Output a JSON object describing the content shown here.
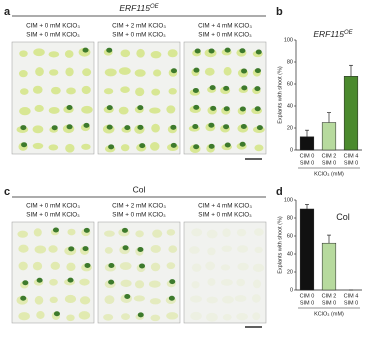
{
  "panels": {
    "a": {
      "label": "a",
      "title": "ERF115",
      "title_sup": "OE",
      "images": [
        [
          "CIM + 0 mM KClO₃",
          "SIM + 0 mM KClO₃"
        ],
        [
          "CIM + 2 mM KClO₃",
          "SIM + 0 mM KClO₃"
        ],
        [
          "CIM + 4 mM KClO₃",
          "SIM + 0 mM KClO₃"
        ]
      ]
    },
    "c": {
      "label": "c",
      "title": "Col",
      "images": [
        [
          "CIM + 0 mM KClO₃",
          "SIM + 0 mM KClO₃"
        ],
        [
          "CIM + 2 mM KClO₃",
          "SIM + 0 mM KClO₃"
        ],
        [
          "CIM + 4 mM KClO₃",
          "SIM + 0 mM KClO₃"
        ]
      ]
    }
  },
  "chart_data": [
    {
      "type": "bar",
      "label": "b",
      "title": "ERF115",
      "title_sup": "OE",
      "ylabel": "Explants with shoot (%)",
      "xlabel": "KClO₃ (mM)",
      "categories": [
        [
          "CIM 0",
          "SIM 0"
        ],
        [
          "CIM 2",
          "SIM 0"
        ],
        [
          "CIM 4",
          "SIM 0"
        ]
      ],
      "values": [
        12,
        25,
        67
      ],
      "errors": [
        6,
        9,
        10
      ],
      "colors": [
        "#111111",
        "#b7da9e",
        "#4b8a2e"
      ],
      "ylim": [
        0,
        100
      ],
      "yticks": [
        0,
        20,
        40,
        60,
        80,
        100
      ]
    },
    {
      "type": "bar",
      "label": "d",
      "title": "Col",
      "ylabel": "Explants with shoot (%)",
      "xlabel": "KClO₃ (mM)",
      "categories": [
        [
          "CIM 0",
          "SIM 0"
        ],
        [
          "CIM 2",
          "SIM 0"
        ],
        [
          "CIM 4",
          "SIM 0"
        ]
      ],
      "values": [
        90,
        52,
        0
      ],
      "errors": [
        5,
        9,
        0
      ],
      "colors": [
        "#111111",
        "#b7da9e",
        "#4b8a2e"
      ],
      "ylim": [
        0,
        100
      ],
      "yticks": [
        0,
        20,
        40,
        60,
        80,
        100
      ]
    }
  ]
}
